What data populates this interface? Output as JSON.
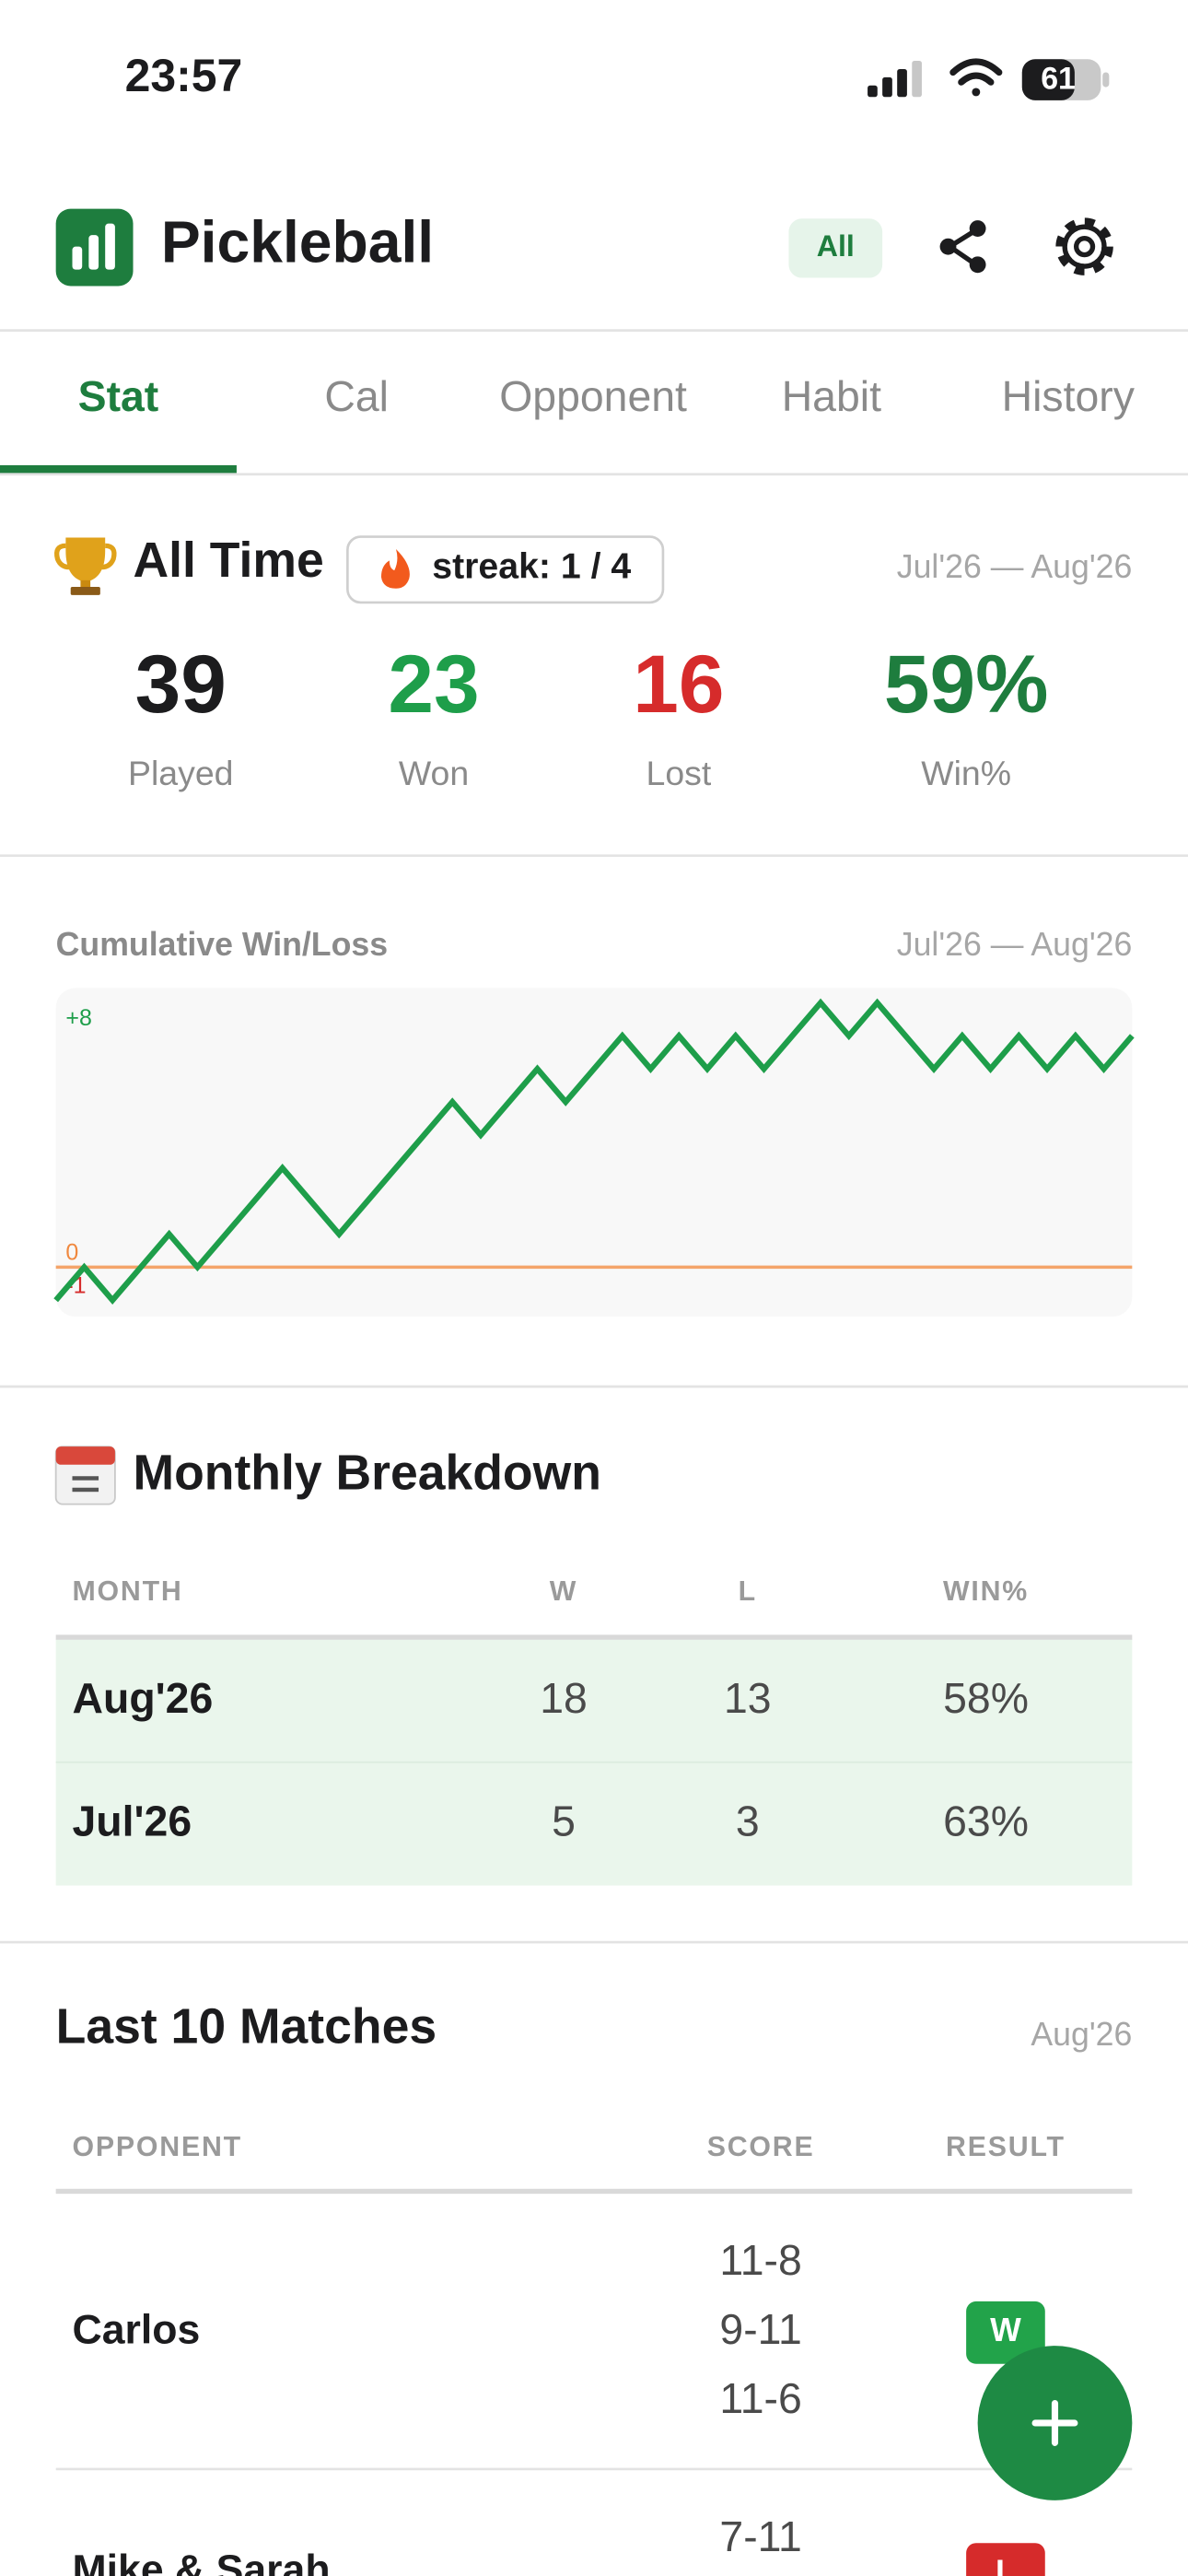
{
  "status_bar": {
    "time": "23:57",
    "battery": "61"
  },
  "header": {
    "title": "Pickleball",
    "filter": "All"
  },
  "tabs": [
    "Stat",
    "Cal",
    "Opponent",
    "Habit",
    "History"
  ],
  "summary": {
    "title": "All Time",
    "streak": "streak: 1 / 4",
    "range": "Jul'26 — Aug'26",
    "stats": [
      {
        "value": 39,
        "label": "Played"
      },
      {
        "value": 23,
        "label": "Won"
      },
      {
        "value": 16,
        "label": "Lost"
      },
      {
        "value": "59%",
        "label": "Win%"
      }
    ]
  },
  "chart_data": {
    "type": "line",
    "title": "Cumulative Win/Loss",
    "range": "Jul'26 — Aug'26",
    "values": [
      -1,
      0,
      -1,
      0,
      1,
      0,
      1,
      2,
      3,
      2,
      1,
      2,
      3,
      4,
      5,
      4,
      5,
      6,
      5,
      6,
      7,
      6,
      7,
      6,
      7,
      6,
      7,
      8,
      7,
      8,
      7,
      6,
      7,
      6,
      7,
      6,
      7,
      6,
      7
    ],
    "ylim": [
      -1.5,
      8.45
    ],
    "yticks": [
      {
        "value": 8,
        "label": "+8"
      },
      0,
      -1
    ],
    "color": "#1e9e4a"
  },
  "monthly": {
    "title": "Monthly Breakdown",
    "columns": [
      "MONTH",
      "W",
      "L",
      "WIN%"
    ],
    "rows": [
      [
        "Aug'26",
        18,
        13,
        "58%"
      ],
      [
        "Jul'26",
        5,
        3,
        "63%"
      ]
    ]
  },
  "last_matches": {
    "title": "Last 10 Matches",
    "range": "Aug'26",
    "columns": [
      "OPPONENT",
      "SCORE",
      "RESULT"
    ],
    "rows": [
      {
        "opponent": "Carlos",
        "scores": [
          "11-8",
          "9-11",
          "11-6"
        ],
        "result": "W"
      },
      {
        "opponent": "Mike & Sarah",
        "scores": [
          "7-11"
        ],
        "result": "L"
      }
    ]
  }
}
